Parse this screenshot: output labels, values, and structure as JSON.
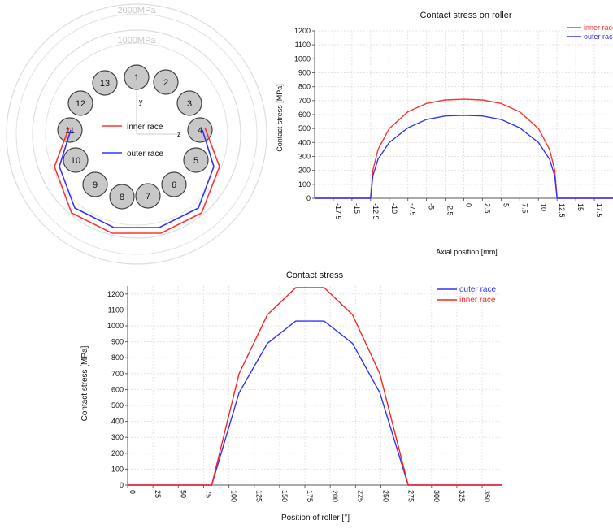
{
  "polar": {
    "rings": [
      "2000MPa",
      "1000MPa"
    ],
    "axis_y": "y",
    "axis_z": "z",
    "rollers": [
      "1",
      "2",
      "3",
      "4",
      "5",
      "6",
      "7",
      "8",
      "9",
      "10",
      "11",
      "12",
      "13"
    ],
    "legend": [
      {
        "name": "inner race",
        "color": "#ff3333"
      },
      {
        "name": "outer race",
        "color": "#3333ff"
      }
    ]
  },
  "chart_data": [
    {
      "type": "line",
      "title": "Contact stress on roller",
      "xlabel": "Axial position [mm]",
      "ylabel": "Contact stress [MPa]",
      "xlim": [
        -20,
        20
      ],
      "ylim": [
        0,
        1200
      ],
      "x_ticks": [
        "-17.5",
        "-15",
        "-12.5",
        "-10",
        "-7.5",
        "-5",
        "-2.5",
        "0",
        "2.5",
        "5",
        "7.5",
        "10",
        "12.5",
        "15",
        "17.5"
      ],
      "y_ticks": [
        "0",
        "100",
        "200",
        "300",
        "400",
        "500",
        "600",
        "700",
        "800",
        "900",
        "1000",
        "1100",
        "1200"
      ],
      "legend_position": "top-right",
      "series": [
        {
          "name": "inner race",
          "color": "#ff3333",
          "x": [
            -20,
            -12.5,
            -12.2,
            -11.5,
            -10,
            -7.5,
            -5,
            -2.5,
            0,
            2.5,
            5,
            7.5,
            10,
            11.5,
            12.2,
            12.5,
            20
          ],
          "y": [
            0,
            0,
            200,
            350,
            500,
            620,
            680,
            705,
            710,
            705,
            680,
            620,
            500,
            350,
            200,
            0,
            0
          ]
        },
        {
          "name": "outer race",
          "color": "#3333ff",
          "x": [
            -20,
            -12.5,
            -12.2,
            -11.5,
            -10,
            -7.5,
            -5,
            -2.5,
            0,
            2.5,
            5,
            7.5,
            10,
            11.5,
            12.2,
            12.5,
            20
          ],
          "y": [
            0,
            0,
            160,
            280,
            400,
            505,
            565,
            590,
            595,
            590,
            565,
            505,
            400,
            280,
            160,
            0,
            0
          ]
        }
      ]
    },
    {
      "type": "line",
      "title": "Contact stress",
      "xlabel": "Position of roller [°]",
      "ylabel": "Contact stress [MPa]",
      "xlim": [
        0,
        370
      ],
      "ylim": [
        0,
        1250
      ],
      "x_ticks": [
        "0",
        "25",
        "50",
        "75",
        "100",
        "125",
        "150",
        "175",
        "200",
        "225",
        "250",
        "275",
        "300",
        "325",
        "350"
      ],
      "y_ticks": [
        "0",
        "100",
        "200",
        "300",
        "400",
        "500",
        "600",
        "700",
        "800",
        "900",
        "1000",
        "1100",
        "1200"
      ],
      "legend_position": "top-right",
      "series": [
        {
          "name": "outer race",
          "color": "#3333ff",
          "x": [
            0,
            83,
            110,
            138,
            166,
            194,
            222,
            249,
            277,
            370
          ],
          "y": [
            0,
            0,
            580,
            890,
            1030,
            1030,
            890,
            580,
            0,
            0
          ]
        },
        {
          "name": "inner race",
          "color": "#ff2222",
          "x": [
            0,
            83,
            110,
            138,
            166,
            194,
            222,
            249,
            277,
            370
          ],
          "y": [
            0,
            0,
            700,
            1070,
            1240,
            1240,
            1070,
            700,
            0,
            0
          ]
        }
      ]
    }
  ]
}
